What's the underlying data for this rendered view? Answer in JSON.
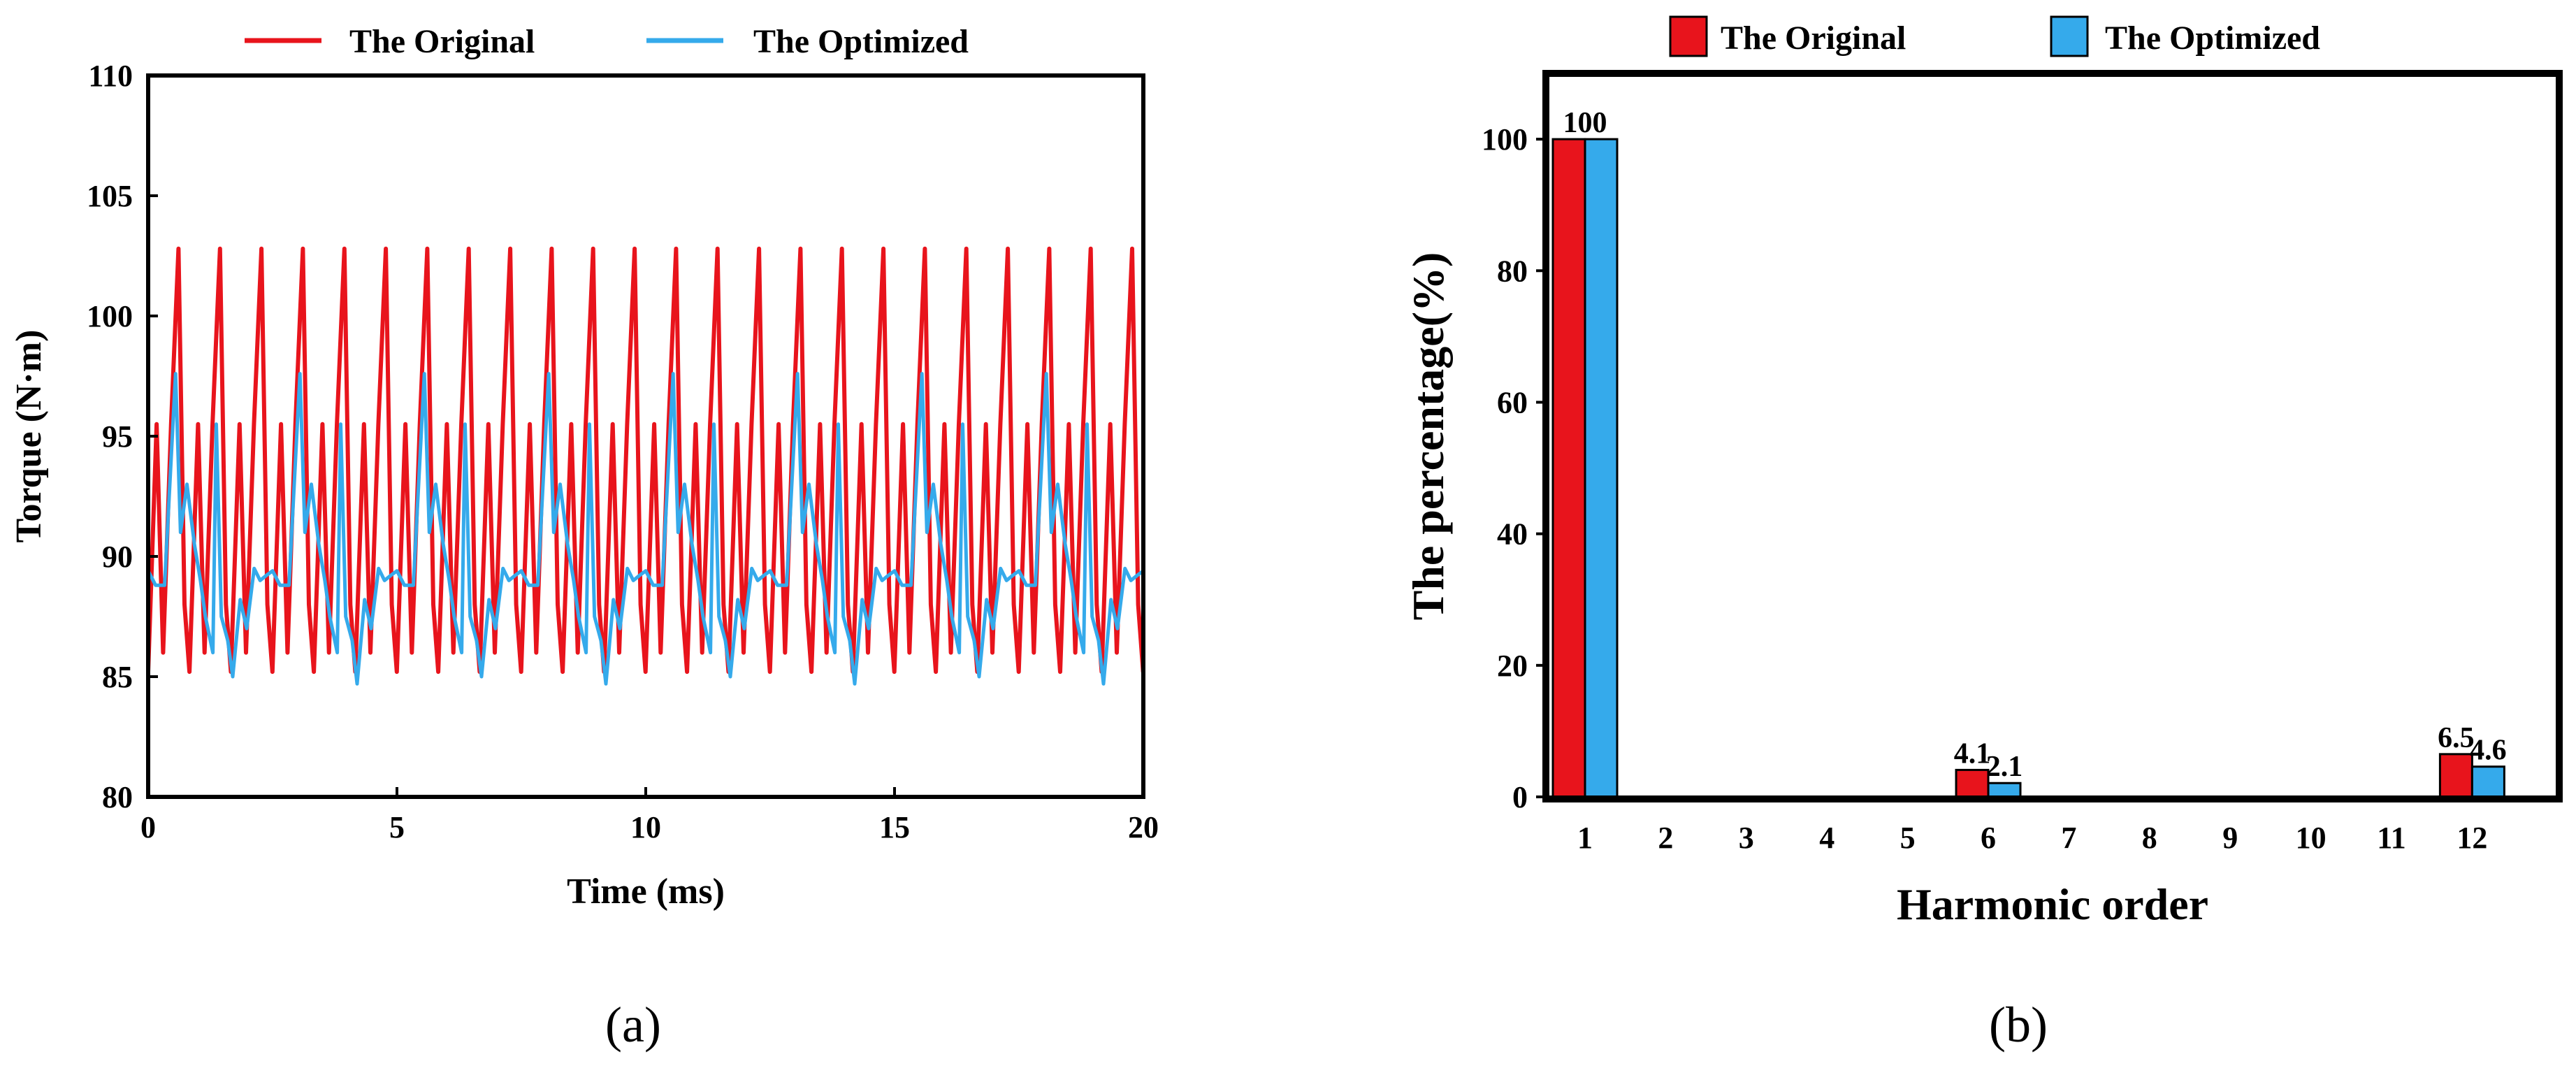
{
  "colors": {
    "original": "#e8141c",
    "optimized": "#35aaeb"
  },
  "chart_data": [
    {
      "type": "line",
      "panel_label": "(a)",
      "xlabel": "Time (ms)",
      "ylabel": "Torque (N·m)",
      "xlim": [
        0,
        20
      ],
      "ylim": [
        80,
        110
      ],
      "xticks": [
        "0",
        "5",
        "10",
        "15",
        "20"
      ],
      "yticks": [
        "80",
        "85",
        "90",
        "95",
        "100",
        "105",
        "110"
      ],
      "legend": [
        "The Original",
        "The Optimized"
      ],
      "series": [
        {
          "name": "The Original",
          "period_ms": 0.8333,
          "start": [
            0,
            85.2
          ],
          "shape": [
            [
              0.17,
              95.5
            ],
            [
              0.3,
              86.0
            ],
            [
              0.46,
              95.5
            ],
            [
              0.61,
              102.8
            ],
            [
              0.73,
              88.0
            ],
            [
              0.83,
              85.2
            ]
          ]
        },
        {
          "name": "The Optimized",
          "period_ms": 2.5,
          "start": [
            0,
            89.4
          ],
          "shape": [
            [
              0.15,
              88.8
            ],
            [
              0.33,
              88.8
            ],
            [
              0.55,
              97.6
            ],
            [
              0.65,
              91.0
            ],
            [
              0.78,
              93.0
            ],
            [
              0.93,
              90.5
            ],
            [
              1.05,
              89.0
            ],
            [
              1.15,
              87.5
            ],
            [
              1.3,
              86.0
            ],
            [
              1.37,
              95.5
            ],
            [
              1.47,
              87.5
            ],
            [
              1.6,
              86.5
            ],
            [
              1.7,
              85.0
            ],
            [
              1.85,
              88.2
            ],
            [
              1.98,
              87.0
            ],
            [
              2.13,
              89.5
            ],
            [
              2.25,
              89.0
            ],
            [
              2.37,
              89.2
            ],
            [
              2.5,
              89.4
            ]
          ],
          "minima": [
            [
              4.5,
              84.7
            ],
            [
              9.5,
              84.7
            ],
            [
              14.5,
              84.7
            ],
            [
              19.5,
              84.7
            ]
          ]
        }
      ]
    },
    {
      "type": "bar",
      "panel_label": "(b)",
      "xlabel": "Harmonic order",
      "ylabel": "The percentage(%)",
      "categories": [
        "1",
        "2",
        "3",
        "4",
        "5",
        "6",
        "7",
        "8",
        "9",
        "10",
        "11",
        "12"
      ],
      "ylim": [
        0,
        110
      ],
      "yticks": [
        "0",
        "20",
        "40",
        "60",
        "80",
        "100"
      ],
      "legend": [
        "The Original",
        "The Optimized"
      ],
      "series": [
        {
          "name": "The Original",
          "values": [
            100,
            0,
            0,
            0,
            0,
            4.1,
            0,
            0,
            0,
            0,
            0,
            6.5
          ]
        },
        {
          "name": "The Optimized",
          "values": [
            100,
            0,
            0,
            0,
            0,
            2.1,
            0,
            0,
            0,
            0,
            0,
            4.6
          ]
        }
      ],
      "data_labels": [
        {
          "category": "1",
          "text": "100"
        },
        {
          "category": "6",
          "series": "The Original",
          "text": "4.1"
        },
        {
          "category": "6",
          "series": "The Optimized",
          "text": "2.1"
        },
        {
          "category": "12",
          "series": "The Original",
          "text": "6.5"
        },
        {
          "category": "12",
          "series": "The Optimized",
          "text": "4.6"
        }
      ]
    }
  ]
}
